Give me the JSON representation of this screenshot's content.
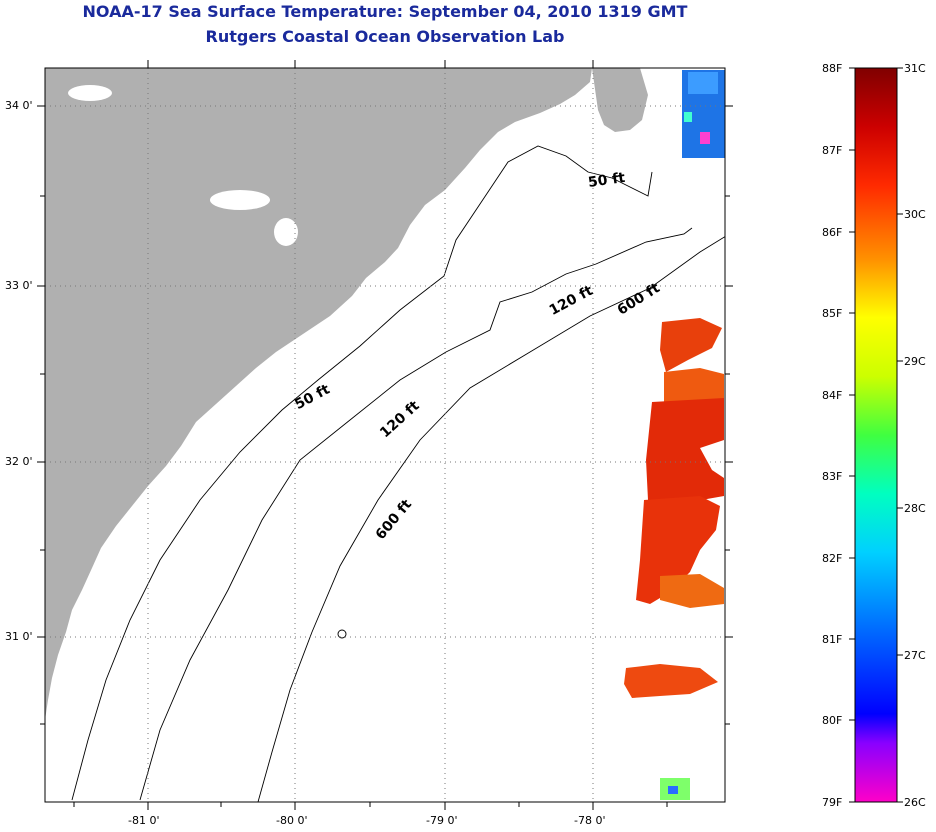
{
  "header": {
    "title": "NOAA-17 Sea Surface Temperature:  September 04, 2010 1319 GMT",
    "subtitle": "Rutgers Coastal Ocean Observation Lab"
  },
  "map": {
    "lat_labels": [
      "34 0'",
      "33 0'",
      "32 0'",
      "31 0'"
    ],
    "lon_labels": [
      "-81 0'",
      "-80 0'",
      "-79 0'",
      "-78 0'"
    ],
    "isobath_labels": [
      "50 ft",
      "50 ft",
      "120 ft",
      "120 ft",
      "600 ft",
      "600 ft"
    ],
    "colors": {
      "land": "#b0b0b0",
      "ocean": "#ffffff",
      "contour": "#000000",
      "grid": "#777777"
    }
  },
  "colorbar": {
    "f_labels": [
      "88F",
      "87F",
      "86F",
      "85F",
      "84F",
      "83F",
      "82F",
      "81F",
      "80F",
      "79F"
    ],
    "c_labels": [
      "31C",
      "30C",
      "29C",
      "28C",
      "27C",
      "26C"
    ],
    "f_range": [
      79,
      88
    ],
    "c_range": [
      26,
      31
    ]
  }
}
